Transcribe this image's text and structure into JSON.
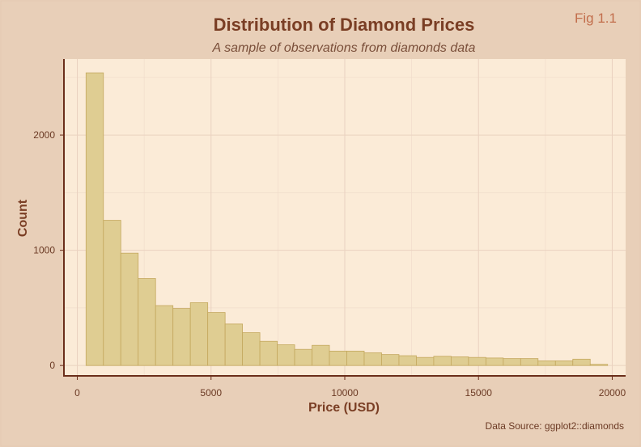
{
  "chart_data": {
    "type": "bar",
    "title": "Distribution of Diamond Prices",
    "subtitle": "A sample of observations from diamonds data",
    "fig_label": "Fig 1.1",
    "xlabel": "Price (USD)",
    "ylabel": "Count",
    "caption": "Data Source: ggplot2::diamonds",
    "xlim": [
      -500,
      20500
    ],
    "ylim": [
      -90,
      2660
    ],
    "x_ticks": [
      0,
      5000,
      10000,
      15000,
      20000
    ],
    "y_ticks": [
      0,
      1000,
      2000
    ],
    "bin_width": 650,
    "bins_start": 326,
    "values": [
      2540,
      1260,
      975,
      755,
      520,
      495,
      545,
      460,
      360,
      285,
      210,
      180,
      140,
      175,
      125,
      125,
      110,
      95,
      85,
      70,
      80,
      75,
      70,
      65,
      60,
      60,
      40,
      40,
      55,
      10
    ],
    "grid": true,
    "colors": {
      "bar_fill": "#dfcd92",
      "bar_stroke": "#c4a85e",
      "panel": "#fbebd7",
      "background": "#e8cfb8"
    }
  }
}
